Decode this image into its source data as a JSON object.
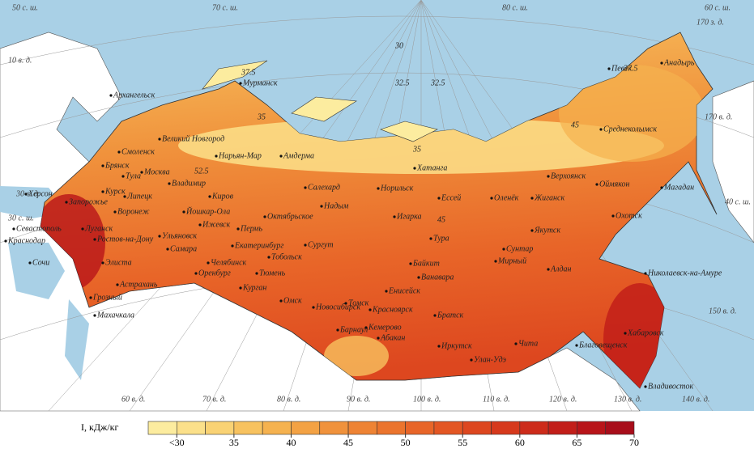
{
  "map": {
    "cities": [
      "Мурманск",
      "Архангельск",
      "Великий Новгород",
      "Смоленск",
      "Брянск",
      "Тула",
      "Москва",
      "Владимир",
      "Курск",
      "Липецк",
      "Воронеж",
      "Херсон",
      "Запорожье",
      "Луганск",
      "Севастополь",
      "Ростов-на-Дону",
      "Краснодар",
      "Элиста",
      "Сочи",
      "Астрахань",
      "Грозный",
      "Махачкала",
      "Киров",
      "Йошкар-Ола",
      "Ижевск",
      "Пермь",
      "Ульяновск",
      "Самара",
      "Оренбург",
      "Екатеринбург",
      "Челябинск",
      "Тобольск",
      "Тюмень",
      "Курган",
      "Сургут",
      "Октябрьское",
      "Салехард",
      "Надым",
      "Омск",
      "Новосибирск",
      "Томск",
      "Барнаул",
      "Кемерово",
      "Абакан",
      "Красноярск",
      "Енисейск",
      "Ванавара",
      "Байкит",
      "Тура",
      "Ессей",
      "Игарка",
      "Норильск",
      "Хатанга",
      "Оленёк",
      "Жиганск",
      "Верхоянск",
      "Среднеколымск",
      "Оймякон",
      "Магадан",
      "Охотск",
      "Якутск",
      "Сунтар",
      "Мирный",
      "Алдан",
      "Братск",
      "Иркутск",
      "Улан-Удэ",
      "Чита",
      "Благовещенск",
      "Хабаровск",
      "Николаевск-на-Амуре",
      "Владивосток",
      "Анадырь",
      "Певек",
      "Нарьян-Мар",
      "Амдерма"
    ],
    "graticule_labels": [
      "50 с. ш.",
      "70 с. ш.",
      "80 с. ш.",
      "60 с. ш.",
      "170 з. д.",
      "10 в. д.",
      "170 в. д.",
      "30 в. д.",
      "40 с. ш.",
      "30 с. ш.",
      "60 в. д.",
      "70 в. д.",
      "80 в. д.",
      "90 в. д.",
      "100 в. д.",
      "110 в. д.",
      "120 в. д.",
      "130 в. д.",
      "140 в. д.",
      "150 в. д."
    ],
    "isoline_labels": [
      "37.5",
      "30",
      "32.5",
      "32.5",
      "35",
      "45",
      "52.5",
      "35",
      "45",
      "37.5"
    ]
  },
  "legend": {
    "title": "I, кДж/кг",
    "range": [
      27.5,
      70
    ],
    "colors": [
      "#fcec9f",
      "#fbe08a",
      "#f9d274",
      "#f7c25f",
      "#f5b24f",
      "#f3a244",
      "#f0923c",
      "#ee8334",
      "#eb742d",
      "#e86528",
      "#e35623",
      "#dd471f",
      "#d6391c",
      "#cd2b1a",
      "#c21e19",
      "#b81419",
      "#a80d1a"
    ],
    "ticks": [
      {
        "value": 30,
        "label": "<30"
      },
      35,
      40,
      45,
      50,
      55,
      60,
      65,
      70
    ]
  }
}
